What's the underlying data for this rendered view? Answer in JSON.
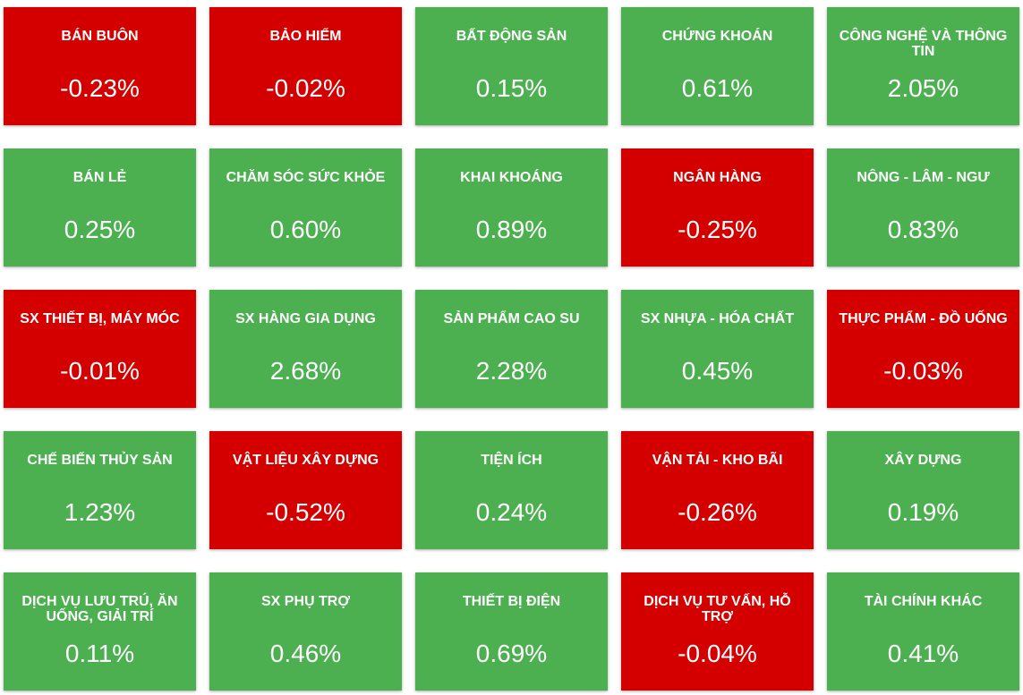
{
  "colors": {
    "up": "#4caf50",
    "down": "#d40000",
    "text": "#ffffff"
  },
  "sectors": [
    {
      "name": "BÁN BUÔN",
      "change": "-0.23%",
      "trend": "down"
    },
    {
      "name": "BẢO HIỂM",
      "change": "-0.02%",
      "trend": "down"
    },
    {
      "name": "BẤT ĐỘNG SẢN",
      "change": "0.15%",
      "trend": "up"
    },
    {
      "name": "CHỨNG KHOÁN",
      "change": "0.61%",
      "trend": "up"
    },
    {
      "name": "CÔNG NGHỆ VÀ THÔNG TIN",
      "change": "2.05%",
      "trend": "up"
    },
    {
      "name": "BÁN LẺ",
      "change": "0.25%",
      "trend": "up"
    },
    {
      "name": "CHĂM SÓC SỨC KHỎE",
      "change": "0.60%",
      "trend": "up"
    },
    {
      "name": "KHAI KHOÁNG",
      "change": "0.89%",
      "trend": "up"
    },
    {
      "name": "NGÂN HÀNG",
      "change": "-0.25%",
      "trend": "down"
    },
    {
      "name": "NÔNG - LÂM - NGƯ",
      "change": "0.83%",
      "trend": "up"
    },
    {
      "name": "SX THIẾT BỊ, MÁY MÓC",
      "change": "-0.01%",
      "trend": "down"
    },
    {
      "name": "SX HÀNG GIA DỤNG",
      "change": "2.68%",
      "trend": "up"
    },
    {
      "name": "SẢN PHẨM CAO SU",
      "change": "2.28%",
      "trend": "up"
    },
    {
      "name": "SX NHỰA - HÓA CHẤT",
      "change": "0.45%",
      "trend": "up"
    },
    {
      "name": "THỰC PHẨM - ĐỒ UỐNG",
      "change": "-0.03%",
      "trend": "down"
    },
    {
      "name": "CHẾ BIẾN THỦY SẢN",
      "change": "1.23%",
      "trend": "up"
    },
    {
      "name": "VẬT LIỆU XÂY DỰNG",
      "change": "-0.52%",
      "trend": "down"
    },
    {
      "name": "TIỆN ÍCH",
      "change": "0.24%",
      "trend": "up"
    },
    {
      "name": "VẬN TẢI - KHO BÃI",
      "change": "-0.26%",
      "trend": "down"
    },
    {
      "name": "XÂY DỰNG",
      "change": "0.19%",
      "trend": "up"
    },
    {
      "name": "DỊCH VỤ LƯU TRÚ, ĂN UỐNG, GIẢI TRÍ",
      "change": "0.11%",
      "trend": "up"
    },
    {
      "name": "SX PHỤ TRỢ",
      "change": "0.46%",
      "trend": "up"
    },
    {
      "name": "THIẾT BỊ ĐIỆN",
      "change": "0.69%",
      "trend": "up"
    },
    {
      "name": "DỊCH VỤ TƯ VẤN, HỖ TRỢ",
      "change": "-0.04%",
      "trend": "down"
    },
    {
      "name": "TÀI CHÍNH KHÁC",
      "change": "0.41%",
      "trend": "up"
    }
  ]
}
